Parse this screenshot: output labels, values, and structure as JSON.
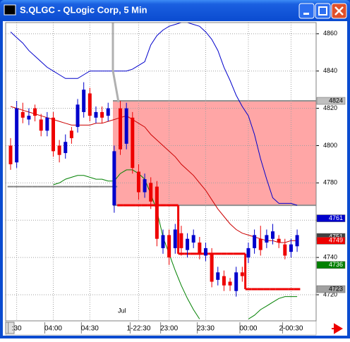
{
  "chart_data": {
    "type": "candlestick",
    "title": "S.QLGC - QLogic Corp, 5 Min",
    "categories": [
      null,
      ":30",
      null,
      null,
      null,
      null,
      null,
      "04:00",
      null,
      null,
      null,
      null,
      null,
      "04:30",
      null,
      null,
      null,
      null,
      null,
      null,
      null,
      "1-22:30",
      null,
      null,
      null,
      null,
      "23:00",
      null,
      null,
      null,
      null,
      null,
      "23:30",
      null,
      null,
      null,
      null,
      null,
      null,
      "00:00",
      null,
      null,
      null,
      null,
      null,
      null,
      "2-00:30",
      null
    ],
    "annotation": "Jul",
    "open": [
      4800,
      4791,
      4818,
      4814,
      4820,
      4814,
      4808,
      4815,
      4800,
      4796,
      4808,
      4810,
      4818,
      4828,
      4815,
      4818,
      4816,
      4768,
      4820,
      4801,
      4815,
      4786,
      4775,
      4780,
      4778,
      4745,
      4752,
      4745,
      4753,
      4744,
      4748,
      4748,
      4741,
      4742,
      4728,
      4730,
      4727,
      4722,
      4732,
      4740,
      4745,
      4750,
      4748,
      4750,
      4750,
      4747,
      4743,
      4746
    ],
    "high": [
      4804,
      4824,
      4823,
      4820,
      4822,
      4817,
      4818,
      4818,
      4803,
      4806,
      4810,
      4825,
      4834,
      4831,
      4821,
      4821,
      4823,
      4800,
      4824,
      4823,
      4818,
      4790,
      4785,
      4783,
      4781,
      4755,
      4755,
      4758,
      4757,
      4753,
      4755,
      4751,
      4748,
      4745,
      4735,
      4733,
      4729,
      4735,
      4735,
      4748,
      4755,
      4757,
      4755,
      4758,
      4752,
      4750,
      4750,
      4755
    ],
    "low": [
      4787,
      4788,
      4812,
      4811,
      4813,
      4805,
      4805,
      4794,
      4791,
      4793,
      4801,
      4807,
      4815,
      4813,
      4812,
      4812,
      4813,
      4764,
      4795,
      4798,
      4785,
      4771,
      4772,
      4766,
      4746,
      4742,
      4736,
      4742,
      4741,
      4740,
      4745,
      4739,
      4738,
      4724,
      4725,
      4722,
      4722,
      4719,
      4727,
      4737,
      4742,
      4741,
      4745,
      4747,
      4745,
      4739,
      4740,
      4743
    ],
    "close": [
      4790,
      4820,
      4815,
      4816,
      4816,
      4808,
      4815,
      4797,
      4795,
      4802,
      4804,
      4822,
      4830,
      4816,
      4818,
      4815,
      4820,
      4797,
      4798,
      4820,
      4788,
      4775,
      4782,
      4770,
      4750,
      4752,
      4740,
      4755,
      4745,
      4750,
      4752,
      4742,
      4745,
      4727,
      4732,
      4725,
      4725,
      4732,
      4730,
      4745,
      4752,
      4744,
      4752,
      4754,
      4748,
      4741,
      4747,
      4752
    ],
    "up_color": "#0000cc",
    "down_color": "#ee0000",
    "lines": [
      {
        "color": "#0000cc",
        "values": [
          4861,
          4858,
          4855,
          4851,
          4848,
          4845,
          4842,
          4840,
          4838,
          4836,
          4836,
          4836,
          4838,
          4840,
          4840,
          4840,
          4840,
          4840,
          4840,
          4840,
          4841,
          4843,
          4845,
          4854,
          4859,
          4862,
          4864,
          4865,
          4866,
          4866,
          4865,
          4864,
          4861,
          4857,
          4851,
          4842,
          4835,
          4827,
          4821,
          4816,
          4806,
          4793,
          4782,
          4772,
          4769,
          4769,
          4769,
          4768
        ]
      },
      {
        "color": "#cc0000",
        "values": [
          4821,
          4820,
          4819,
          4818,
          4817,
          4816,
          4815,
          4814,
          4813,
          4812,
          4811,
          4811,
          4811,
          4811,
          4812,
          4812,
          4813,
          4814,
          4815,
          4816,
          4814,
          4812,
          4810,
          4806,
          4803,
          4800,
          4797,
          4794,
          4790,
          4787,
          4784,
          4780,
          4776,
          4771,
          4766,
          4762,
          4758,
          4755,
          4753,
          4752,
          4751,
          4750,
          4749,
          4749,
          4748,
          4748,
          4749,
          4749
        ]
      },
      {
        "color": "#008000",
        "values": [
          null,
          null,
          null,
          null,
          null,
          null,
          null,
          4779,
          4780,
          4782,
          4783,
          4784,
          4784,
          4783,
          4782,
          4782,
          4781,
          4781,
          4785,
          4787,
          4787,
          4785,
          4782,
          4774,
          4765,
          4751,
          4742,
          4733,
          4725,
          4718,
          4712,
          4707,
          null,
          null,
          null,
          null,
          null,
          null,
          null,
          4707,
          4709,
          4712,
          4714,
          4716,
          4718,
          4719,
          4719,
          4719
        ]
      }
    ],
    "steps": [
      {
        "color": "#808080",
        "width": 2,
        "values": [
          4778,
          4778,
          4778,
          4778,
          4778,
          4778,
          4778,
          4778,
          4778,
          4778,
          4778,
          4778,
          4778,
          4778,
          4778,
          4778,
          4778,
          4778,
          null,
          null,
          null,
          null,
          null,
          null,
          null,
          null,
          null,
          null,
          null,
          null,
          null,
          null,
          null,
          null,
          null,
          null,
          null,
          null,
          null,
          null,
          null,
          null,
          null,
          null,
          null,
          null,
          null,
          null
        ]
      },
      {
        "color": "#ee0000",
        "width": 3,
        "values": [
          null,
          null,
          null,
          null,
          null,
          null,
          null,
          null,
          null,
          null,
          null,
          null,
          null,
          null,
          null,
          null,
          null,
          null,
          4768,
          4768,
          4768,
          4768,
          4768,
          4768,
          4768,
          4768,
          4768,
          4768,
          4742,
          4742,
          4742,
          4742,
          4742,
          4742,
          4742,
          4742,
          4742,
          4742,
          4742,
          4723,
          4723,
          4723,
          4723,
          4723,
          4723,
          4723,
          4723,
          4723
        ]
      }
    ],
    "zone": {
      "top": 4824,
      "bottom": 4768,
      "color": "#ff9090"
    },
    "price_labels": [
      {
        "value": 4824,
        "bg": "#c0c0c0",
        "fg": "#000000"
      },
      {
        "value": 4761,
        "bg": "#0000cc",
        "fg": "#ffffff"
      },
      {
        "value": 4751,
        "bg": "#404040",
        "fg": "#ffffff"
      },
      {
        "value": 4749,
        "bg": "#ee0000",
        "fg": "#ffffff"
      },
      {
        "value": 4736,
        "bg": "#008000",
        "fg": "#ffffff"
      },
      {
        "value": 4723,
        "bg": "#a0a0a0",
        "fg": "#000000"
      }
    ],
    "ylim": [
      4706,
      4866
    ],
    "yticks": [
      4720,
      4740,
      4760,
      4780,
      4800,
      4820,
      4840,
      4860
    ],
    "grid": true
  }
}
